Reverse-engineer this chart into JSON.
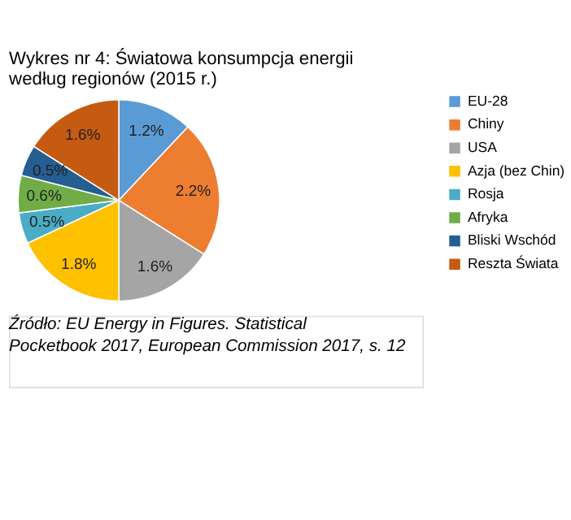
{
  "chart_data": {
    "type": "pie",
    "title": "Wykres nr 4: Światowa konsumpcja energii według regionów (2015 r.)",
    "categories": [
      "EU-28",
      "Chiny",
      "USA",
      "Azja (bez Chin)",
      "Rosja",
      "Afryka",
      "Bliski Wschód",
      "Reszta Świata"
    ],
    "values": [
      1.2,
      2.2,
      1.6,
      1.8,
      0.5,
      0.6,
      0.5,
      1.6
    ],
    "value_labels": [
      "1.2%",
      "2.2%",
      "1.6%",
      "1.8%",
      "0.5%",
      "0.6%",
      "0.5%",
      "1.6%"
    ],
    "colors": [
      "#5b9bd5",
      "#ed7d31",
      "#a5a5a5",
      "#ffc000",
      "#4bacc6",
      "#70ad47",
      "#255e91",
      "#c55a11"
    ],
    "legend": "right",
    "annotations": [
      "Źródło: EU Energy in Figures. Statistical Pocketbook 2017, European Commission 2017, s. 12"
    ]
  }
}
